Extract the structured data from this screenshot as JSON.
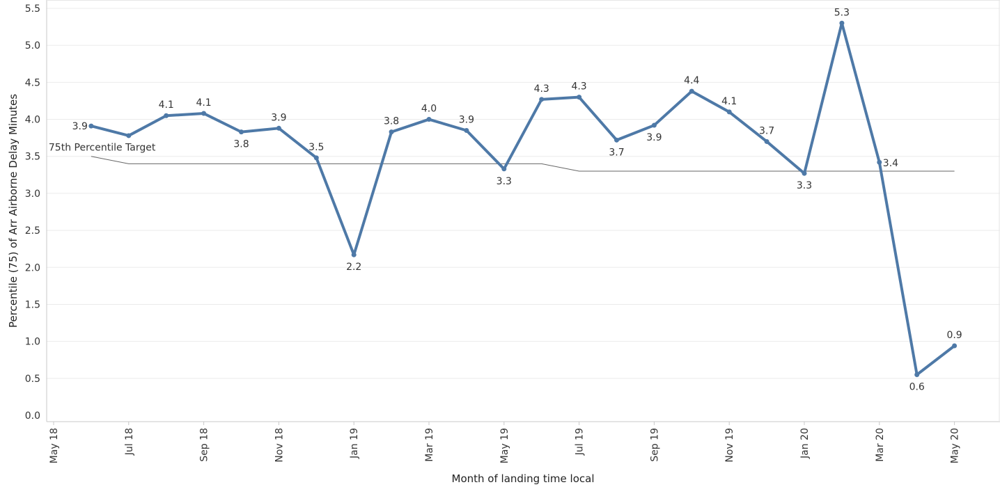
{
  "chart_data": {
    "type": "line",
    "title": "",
    "xlabel": "Month of landing time local",
    "ylabel": "Percentile (75) of Arr Airborne Delay Minutes",
    "ylim": [
      0,
      5.5
    ],
    "yticks": [
      0.0,
      0.5,
      1.0,
      1.5,
      2.0,
      2.5,
      3.0,
      3.5,
      4.0,
      4.5,
      5.0,
      5.5
    ],
    "ytick_labels": [
      "0.0",
      "0.5",
      "1.0",
      "1.5",
      "2.0",
      "2.5",
      "3.0",
      "3.5",
      "4.0",
      "4.5",
      "5.0",
      "5.5"
    ],
    "xtick_labels": [
      "May 18",
      "Jul 18",
      "Sep 18",
      "Nov 18",
      "Jan 19",
      "Mar 19",
      "May 19",
      "Jul 19",
      "Sep 19",
      "Nov 19",
      "Jan 20",
      "Mar 20",
      "May 20"
    ],
    "grid": "horizontal",
    "series": [
      {
        "name": "",
        "color": "#4e79a7",
        "x": [
          "Jun 18",
          "Jul 18",
          "Aug 18",
          "Sep 18",
          "Oct 18",
          "Nov 18",
          "Dec 18",
          "Jan 19",
          "Feb 19",
          "Mar 19",
          "Apr 19",
          "May 19",
          "Jun 19",
          "Jul 19",
          "Aug 19",
          "Sep 19",
          "Oct 19",
          "Nov 19",
          "Dec 19",
          "Jan 20",
          "Feb 20",
          "Mar 20",
          "Apr 20",
          "May 20"
        ],
        "values": [
          3.91,
          3.78,
          4.05,
          4.08,
          3.83,
          3.88,
          3.48,
          2.17,
          3.83,
          4.0,
          3.85,
          3.33,
          4.27,
          4.3,
          3.72,
          3.92,
          4.38,
          4.1,
          3.7,
          3.27,
          5.3,
          3.42,
          0.55,
          0.94
        ],
        "labels": [
          "3.9",
          "",
          "4.1",
          "4.1",
          "3.8",
          "3.9",
          "3.5",
          "2.2",
          "3.8",
          "4.0",
          "3.9",
          "3.3",
          "4.3",
          "4.3",
          "3.7",
          "3.9",
          "4.4",
          "4.1",
          "3.7",
          "3.3",
          "5.3",
          "3.4",
          "0.6",
          "0.9"
        ],
        "label_pos": [
          "left",
          "below",
          "above",
          "above",
          "below",
          "above",
          "above",
          "below",
          "above",
          "above",
          "above",
          "below",
          "above",
          "above",
          "below",
          "below",
          "above",
          "above",
          "above",
          "below",
          "above",
          "right",
          "below",
          "above"
        ]
      }
    ],
    "reference_line": {
      "label": "75th Percentile Target",
      "color": "#666666",
      "x": [
        "Jun 18",
        "Jul 18",
        "Jun 19",
        "Jul 19",
        "May 20"
      ],
      "values": [
        3.5,
        3.4,
        3.4,
        3.3,
        3.3
      ]
    }
  }
}
